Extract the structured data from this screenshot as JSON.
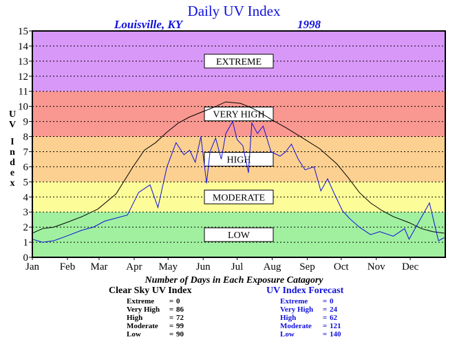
{
  "header": {
    "title": "Daily UV Index",
    "location": "Louisville, KY",
    "year": "1998"
  },
  "colors": {
    "low": "#a0f0a0",
    "moderate": "#fcfc98",
    "high": "#fcd090",
    "very_high": "#f89890",
    "extreme": "#d898f8",
    "clear_sky": "#000000",
    "forecast": "#1010dd"
  },
  "chart_data": {
    "type": "line",
    "ylabel": "UV Index",
    "ylim": [
      0,
      15
    ],
    "yticks": [
      "0",
      "1",
      "2",
      "3",
      "4",
      "5",
      "6",
      "7",
      "8",
      "9",
      "10",
      "11",
      "12",
      "13",
      "14",
      "15"
    ],
    "x_ticks": [
      "Jan",
      "Feb",
      "Mar",
      "Apr",
      "May",
      "Jun",
      "Jul",
      "Aug",
      "Sep",
      "Oct",
      "Nov",
      "Dec"
    ],
    "grid": true,
    "bands": [
      {
        "label": "LOW",
        "from": 0,
        "to": 3,
        "color": "#a0f0a0"
      },
      {
        "label": "MODERATE",
        "from": 3,
        "to": 5,
        "color": "#fcfc98"
      },
      {
        "label": "HIGH",
        "from": 5,
        "to": 8,
        "color": "#fcd090"
      },
      {
        "label": "VERY HIGH",
        "from": 8,
        "to": 11,
        "color": "#f89890"
      },
      {
        "label": "EXTREME",
        "from": 11,
        "to": 15,
        "color": "#d898f8"
      }
    ],
    "series": [
      {
        "name": "Clear Sky UV Index",
        "color": "#000000",
        "points": [
          [
            1,
            1.6
          ],
          [
            10,
            1.9
          ],
          [
            20,
            2.0
          ],
          [
            31,
            2.3
          ],
          [
            45,
            2.7
          ],
          [
            59,
            3.2
          ],
          [
            75,
            4.2
          ],
          [
            90,
            6.0
          ],
          [
            100,
            7.1
          ],
          [
            110,
            7.6
          ],
          [
            120,
            8.3
          ],
          [
            130,
            8.9
          ],
          [
            140,
            9.3
          ],
          [
            150,
            9.6
          ],
          [
            160,
            9.9
          ],
          [
            172,
            10.3
          ],
          [
            185,
            10.2
          ],
          [
            195,
            9.9
          ],
          [
            200,
            9.7
          ],
          [
            213,
            9.1
          ],
          [
            225,
            8.6
          ],
          [
            240,
            7.9
          ],
          [
            255,
            7.2
          ],
          [
            270,
            6.2
          ],
          [
            280,
            5.3
          ],
          [
            290,
            4.3
          ],
          [
            300,
            3.6
          ],
          [
            310,
            3.1
          ],
          [
            320,
            2.7
          ],
          [
            334,
            2.3
          ],
          [
            345,
            1.9
          ],
          [
            355,
            1.7
          ],
          [
            365,
            1.6
          ]
        ]
      },
      {
        "name": "UV Index Forecast",
        "color": "#1010dd",
        "points": [
          [
            1,
            1.2
          ],
          [
            10,
            1.0
          ],
          [
            20,
            1.1
          ],
          [
            31,
            1.4
          ],
          [
            45,
            1.8
          ],
          [
            55,
            2.0
          ],
          [
            65,
            2.4
          ],
          [
            75,
            2.6
          ],
          [
            85,
            2.8
          ],
          [
            95,
            4.3
          ],
          [
            105,
            4.8
          ],
          [
            112,
            3.3
          ],
          [
            120,
            6.0
          ],
          [
            128,
            7.6
          ],
          [
            135,
            6.8
          ],
          [
            140,
            7.1
          ],
          [
            145,
            6.3
          ],
          [
            150,
            8.0
          ],
          [
            155,
            4.9
          ],
          [
            158,
            7.0
          ],
          [
            163,
            7.9
          ],
          [
            168,
            6.5
          ],
          [
            172,
            8.2
          ],
          [
            178,
            9.0
          ],
          [
            182,
            7.8
          ],
          [
            187,
            7.4
          ],
          [
            192,
            5.6
          ],
          [
            195,
            8.9
          ],
          [
            200,
            8.2
          ],
          [
            205,
            8.7
          ],
          [
            212,
            7.0
          ],
          [
            220,
            6.7
          ],
          [
            225,
            7.0
          ],
          [
            230,
            7.5
          ],
          [
            236,
            6.5
          ],
          [
            242,
            5.8
          ],
          [
            250,
            6.0
          ],
          [
            256,
            4.4
          ],
          [
            262,
            5.2
          ],
          [
            268,
            4.2
          ],
          [
            275,
            3.1
          ],
          [
            281,
            2.6
          ],
          [
            290,
            2.0
          ],
          [
            300,
            1.5
          ],
          [
            308,
            1.7
          ],
          [
            320,
            1.4
          ],
          [
            330,
            1.9
          ],
          [
            334,
            1.2
          ],
          [
            352,
            3.6
          ],
          [
            360,
            1.1
          ],
          [
            365,
            1.3
          ]
        ]
      }
    ],
    "days_title": "Number of Days in Each Exposure Catagory",
    "tables": [
      {
        "title": "Clear Sky UV Index",
        "rows": [
          {
            "label": "Extreme",
            "value": "0"
          },
          {
            "label": "Very High",
            "value": "86"
          },
          {
            "label": "High",
            "value": "72"
          },
          {
            "label": "Moderate",
            "value": "99"
          },
          {
            "label": "Low",
            "value": "90"
          }
        ]
      },
      {
        "title": "UV Index Forecast",
        "rows": [
          {
            "label": "Extreme",
            "value": "0"
          },
          {
            "label": "Very High",
            "value": "24"
          },
          {
            "label": "High",
            "value": "62"
          },
          {
            "label": "Moderate",
            "value": "121"
          },
          {
            "label": "Low",
            "value": "140"
          }
        ]
      }
    ]
  }
}
